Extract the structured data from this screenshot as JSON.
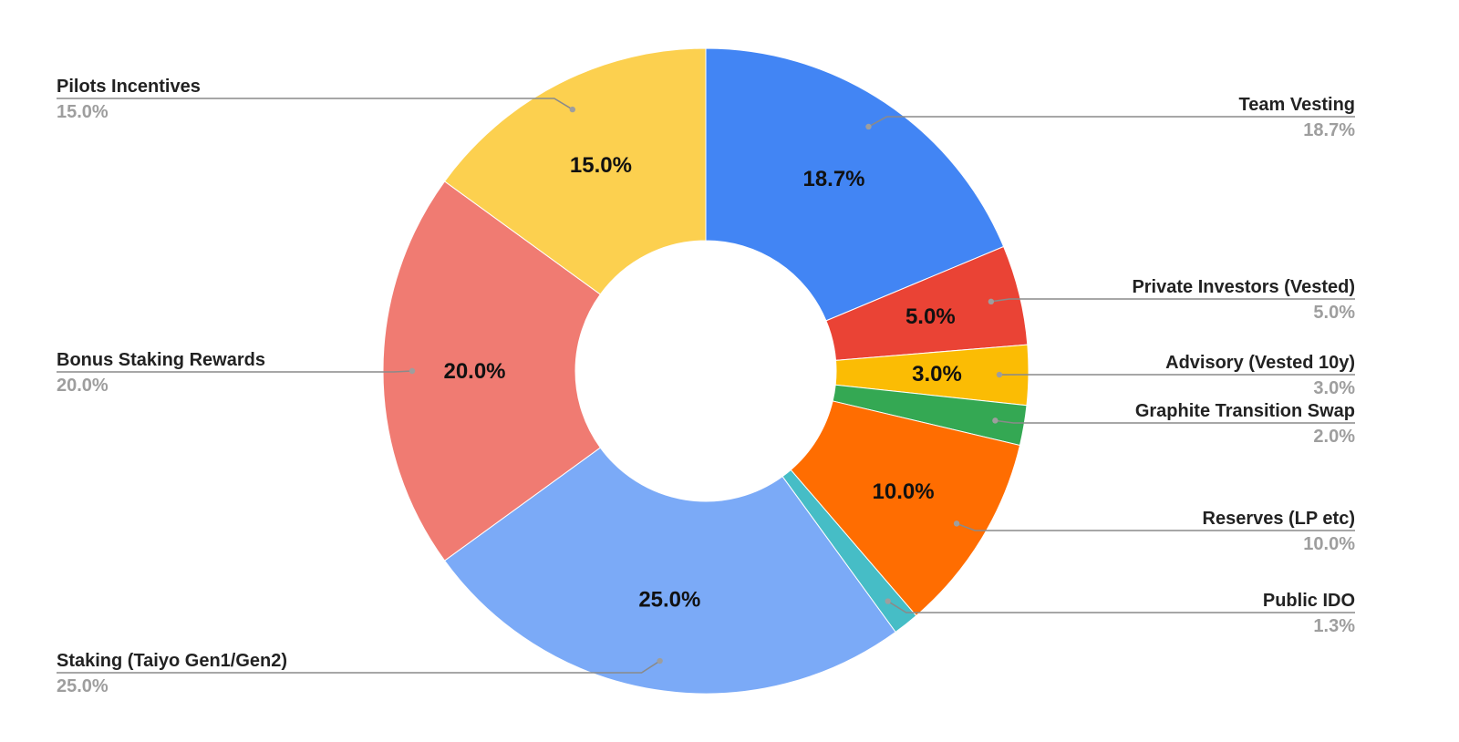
{
  "chart_data": {
    "type": "pie",
    "title": "",
    "categories": [
      "Team Vesting",
      "Private Investors (Vested)",
      "Advisory (Vested 10y)",
      "Graphite Transition Swap",
      "Reserves (LP etc)",
      "Public IDO",
      "Staking (Taiyo Gen1/Gen2)",
      "Bonus Staking Rewards",
      "Pilots Incentives"
    ],
    "values": [
      18.7,
      5.0,
      3.0,
      2.0,
      10.0,
      1.3,
      25.0,
      20.0,
      15.0
    ],
    "value_labels": [
      "18.7%",
      "5.0%",
      "3.0%",
      "2.0%",
      "10.0%",
      "1.3%",
      "25.0%",
      "20.0%",
      "15.0%"
    ],
    "inside_labels": [
      "18.7%",
      "5.0%",
      "3.0%",
      "",
      "10.0%",
      "",
      "25.0%",
      "20.0%",
      "15.0%"
    ],
    "colors": [
      "#4285f4",
      "#ea4335",
      "#fbbc04",
      "#34a853",
      "#ff6d01",
      "#46bdc6",
      "#7baaf7",
      "#f07b72",
      "#fcd04f"
    ],
    "legend": "side-labels",
    "donut": true,
    "start_angle_deg": 0,
    "direction": "clockwise"
  }
}
